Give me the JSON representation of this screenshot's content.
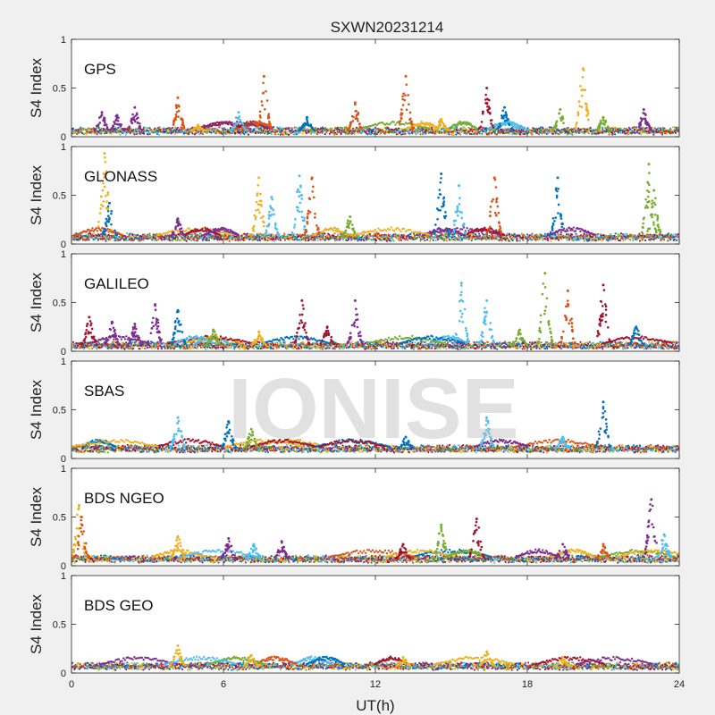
{
  "title": "SXWN20231214",
  "watermark": "IONISE",
  "colors": [
    "#0072BD",
    "#D95319",
    "#EDB120",
    "#7E2F8E",
    "#77AC30",
    "#4DBEEE",
    "#A2142F"
  ],
  "chart_data": {
    "type": "scatter",
    "title": "SXWN20231214",
    "xlabel": "UT(h)",
    "ylabel": "S4 Index",
    "xlim": [
      0,
      24
    ],
    "ylim": [
      0,
      1
    ],
    "xticks": [
      "0",
      "6",
      "12",
      "18",
      "24"
    ],
    "yticks": [
      "0",
      "0.5",
      "1"
    ],
    "grid": false,
    "panels": [
      {
        "label": "GPS",
        "baseline": 0.06,
        "clusters": [
          [
            1.2,
            0.25,
            3
          ],
          [
            1.8,
            0.22,
            3
          ],
          [
            2.5,
            0.3,
            3
          ],
          [
            4.2,
            0.4,
            1
          ],
          [
            5.0,
            0.12,
            2
          ],
          [
            6.6,
            0.25,
            5
          ],
          [
            7.6,
            0.62,
            1
          ],
          [
            9.3,
            0.2,
            0
          ],
          [
            11.2,
            0.35,
            1
          ],
          [
            13.2,
            0.62,
            1
          ],
          [
            14.6,
            0.18,
            2
          ],
          [
            16.4,
            0.5,
            6
          ],
          [
            17.1,
            0.3,
            0
          ],
          [
            19.3,
            0.28,
            4
          ],
          [
            20.2,
            0.7,
            2
          ],
          [
            21.0,
            0.2,
            4
          ],
          [
            22.6,
            0.28,
            3
          ]
        ]
      },
      {
        "label": "GLONASS",
        "baseline": 0.07,
        "clusters": [
          [
            1.3,
            0.93,
            2
          ],
          [
            1.5,
            0.42,
            0
          ],
          [
            4.2,
            0.26,
            3
          ],
          [
            7.4,
            0.68,
            2
          ],
          [
            7.9,
            0.48,
            5
          ],
          [
            9.0,
            0.7,
            5
          ],
          [
            9.5,
            0.68,
            1
          ],
          [
            11.0,
            0.28,
            4
          ],
          [
            14.6,
            0.72,
            0
          ],
          [
            15.3,
            0.6,
            5
          ],
          [
            16.7,
            0.68,
            1
          ],
          [
            19.2,
            0.68,
            0
          ],
          [
            22.8,
            0.82,
            4
          ],
          [
            23.0,
            0.55,
            4
          ]
        ]
      },
      {
        "label": "GALILEO",
        "baseline": 0.06,
        "clusters": [
          [
            0.7,
            0.35,
            6
          ],
          [
            1.6,
            0.3,
            3
          ],
          [
            2.5,
            0.28,
            3
          ],
          [
            3.3,
            0.48,
            3
          ],
          [
            4.2,
            0.42,
            0
          ],
          [
            5.6,
            0.22,
            4
          ],
          [
            7.4,
            0.2,
            2
          ],
          [
            9.1,
            0.52,
            6
          ],
          [
            10.1,
            0.25,
            6
          ],
          [
            11.2,
            0.52,
            3
          ],
          [
            15.4,
            0.7,
            5
          ],
          [
            16.4,
            0.52,
            5
          ],
          [
            17.7,
            0.22,
            4
          ],
          [
            18.7,
            0.8,
            4
          ],
          [
            19.6,
            0.62,
            1
          ],
          [
            21.0,
            0.68,
            6
          ],
          [
            22.3,
            0.25,
            0
          ]
        ]
      },
      {
        "label": "SBAS",
        "baseline": 0.1,
        "clusters": [
          [
            4.2,
            0.42,
            5
          ],
          [
            6.2,
            0.38,
            0
          ],
          [
            7.1,
            0.3,
            4
          ],
          [
            13.2,
            0.22,
            0
          ],
          [
            16.4,
            0.42,
            5
          ],
          [
            19.4,
            0.22,
            5
          ],
          [
            21.0,
            0.58,
            0
          ]
        ]
      },
      {
        "label": "BDS NGEO",
        "baseline": 0.07,
        "clusters": [
          [
            0.3,
            0.62,
            2
          ],
          [
            0.4,
            0.5,
            1
          ],
          [
            4.2,
            0.3,
            2
          ],
          [
            6.2,
            0.28,
            3
          ],
          [
            7.2,
            0.22,
            5
          ],
          [
            8.3,
            0.25,
            3
          ],
          [
            13.1,
            0.22,
            6
          ],
          [
            14.6,
            0.42,
            4
          ],
          [
            16.0,
            0.48,
            6
          ],
          [
            19.4,
            0.22,
            3
          ],
          [
            21.0,
            0.22,
            1
          ],
          [
            22.9,
            0.68,
            3
          ],
          [
            23.4,
            0.32,
            5
          ]
        ]
      },
      {
        "label": "BDS GEO",
        "baseline": 0.07,
        "clusters": [
          [
            4.2,
            0.28,
            2
          ],
          [
            7.1,
            0.18,
            2
          ],
          [
            13.1,
            0.16,
            2
          ],
          [
            16.4,
            0.22,
            2
          ],
          [
            19.4,
            0.16,
            2
          ]
        ]
      }
    ]
  }
}
